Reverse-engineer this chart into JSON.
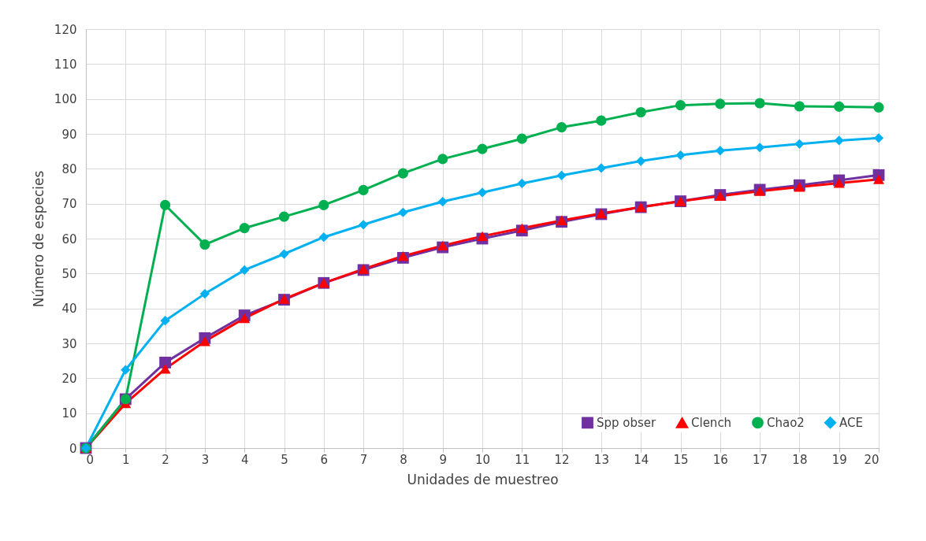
{
  "chart_data": {
    "type": "line",
    "xlabel": "Unidades de muestreo",
    "ylabel": "Número de especies",
    "x": [
      0,
      1,
      2,
      3,
      4,
      5,
      6,
      7,
      8,
      9,
      10,
      11,
      12,
      13,
      14,
      15,
      16,
      17,
      18,
      19,
      20
    ],
    "xlim": [
      0,
      20
    ],
    "xticks": [
      0,
      1,
      2,
      3,
      4,
      5,
      6,
      7,
      8,
      9,
      10,
      11,
      12,
      13,
      14,
      15,
      16,
      17,
      18,
      19,
      20
    ],
    "ylim": [
      0,
      120
    ],
    "yticks": [
      0,
      10,
      20,
      30,
      40,
      50,
      60,
      70,
      80,
      90,
      100,
      110,
      120
    ],
    "grid": true,
    "legend": "bottom right",
    "line_style": "solid",
    "series": [
      {
        "name": "Spp obser",
        "color": "#7030a0",
        "marker": "square",
        "values": [
          0,
          14,
          24.5,
          31.5,
          38,
          42.5,
          47.3,
          51,
          54.5,
          57.5,
          60,
          62.3,
          64.8,
          67,
          69,
          70.7,
          72.5,
          74,
          75.3,
          76.7,
          78.2
        ]
      },
      {
        "name": "Clench",
        "color": "#ff0000",
        "marker": "triangle",
        "values": [
          0,
          12.8,
          22.7,
          30.6,
          37.2,
          42.7,
          47.3,
          51.3,
          55,
          58,
          60.7,
          63,
          65.2,
          67.2,
          69,
          70.7,
          72.2,
          73.6,
          74.8,
          75.9,
          77
        ]
      },
      {
        "name": "Chao2",
        "color": "#00b050",
        "marker": "circle",
        "values": [
          0,
          14,
          69.6,
          58.3,
          63,
          66.3,
          69.6,
          73.9,
          78.7,
          82.8,
          85.7,
          88.6,
          91.9,
          93.8,
          96.2,
          98.2,
          98.6,
          98.8,
          97.9,
          97.8,
          97.6
        ]
      },
      {
        "name": "ACE",
        "color": "#00b0f0",
        "marker": "diamond",
        "values": [
          0,
          22.4,
          36.5,
          44.2,
          51,
          55.6,
          60.4,
          64,
          67.5,
          70.6,
          73.2,
          75.8,
          78.1,
          80.2,
          82.2,
          83.9,
          85.2,
          86.1,
          87.1,
          88.1,
          88.8
        ]
      }
    ]
  }
}
